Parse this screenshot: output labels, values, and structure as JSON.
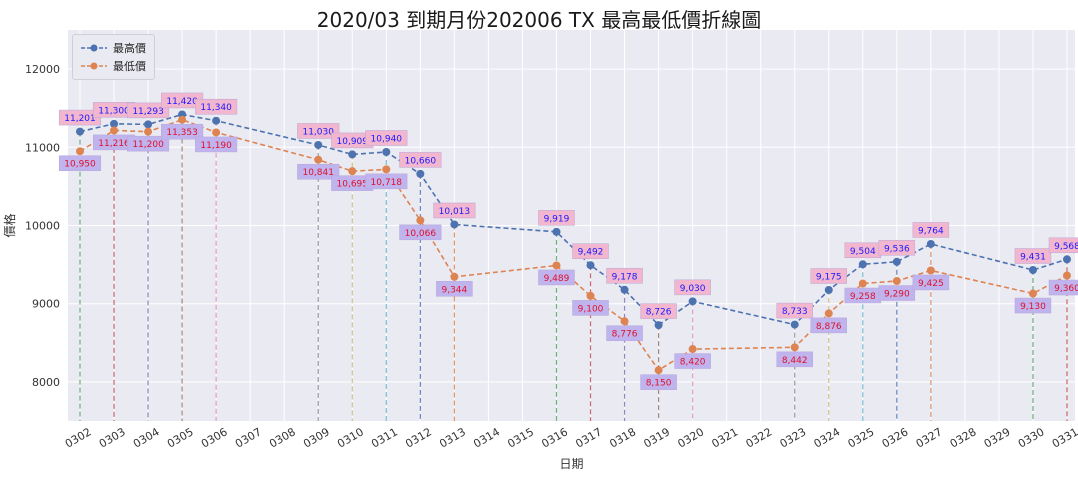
{
  "chart_data": {
    "type": "line",
    "title": "2020/03 到期月份202006 TX 最高最低價折線圖",
    "xlabel": "日期",
    "ylabel": "價格",
    "ylim": [
      7500,
      12500
    ],
    "yticks": [
      8000,
      9000,
      10000,
      11000,
      12000
    ],
    "categories": [
      "0302",
      "0303",
      "0304",
      "0305",
      "0306",
      "0307",
      "0308",
      "0309",
      "0310",
      "0311",
      "0312",
      "0313",
      "0314",
      "0315",
      "0316",
      "0317",
      "0318",
      "0319",
      "0320",
      "0321",
      "0322",
      "0323",
      "0324",
      "0325",
      "0326",
      "0327",
      "0328",
      "0329",
      "0330",
      "0331"
    ],
    "series": [
      {
        "name": "最高價",
        "color": "#4c72b0",
        "values": [
          11201,
          11300,
          11293,
          11420,
          11340,
          null,
          null,
          11030,
          10909,
          10940,
          10660,
          10013,
          null,
          null,
          9919,
          9492,
          9178,
          8726,
          9030,
          null,
          null,
          8733,
          9175,
          9504,
          9536,
          9764,
          null,
          null,
          9431,
          9568
        ],
        "labels": [
          "11,201",
          "11,300",
          "11,293",
          "11,420",
          "11,340",
          "",
          "",
          "11,030",
          "10,909",
          "10,940",
          "10,660",
          "10,013",
          "",
          "",
          "9,919",
          "9,492",
          "9,178",
          "8,726",
          "9,030",
          "",
          "",
          "8,733",
          "9,175",
          "9,504",
          "9,536",
          "9,764",
          "",
          "",
          "9,431",
          "9,568"
        ]
      },
      {
        "name": "最低價",
        "color": "#dd8452",
        "values": [
          10950,
          11216,
          11200,
          11353,
          11190,
          null,
          null,
          10841,
          10695,
          10718,
          10066,
          9344,
          null,
          null,
          9489,
          9100,
          8776,
          8150,
          8420,
          null,
          null,
          8442,
          8876,
          9258,
          9290,
          9425,
          null,
          null,
          9130,
          9360
        ],
        "labels": [
          "10,950",
          "11,216",
          "11,200",
          "11,353",
          "11,190",
          "",
          "",
          "10,841",
          "10,695",
          "10,718",
          "10,066",
          "9,344",
          "",
          "",
          "9,489",
          "9,100",
          "8,776",
          "8,150",
          "8,420",
          "",
          "",
          "8,442",
          "8,876",
          "9,258",
          "9,290",
          "9,425",
          "",
          "",
          "9,130",
          "9,360"
        ]
      }
    ],
    "grid": true,
    "legend_position": "top-left",
    "colors": {
      "background": "#eaeaf2",
      "grid": "#ffffff",
      "high_label_box": "#f2b6cf",
      "high_label_text": "#1a1aff",
      "low_label_box": "#c0b4ee",
      "low_label_text": "#e0102a",
      "drop_lines": [
        "#55a868",
        "#c44e52",
        "#8172b2",
        "#937860",
        "#da8bc3",
        "#8c8c8c",
        "#ccb974",
        "#64b5cd",
        "#4c72b0",
        "#dd8452"
      ]
    }
  }
}
